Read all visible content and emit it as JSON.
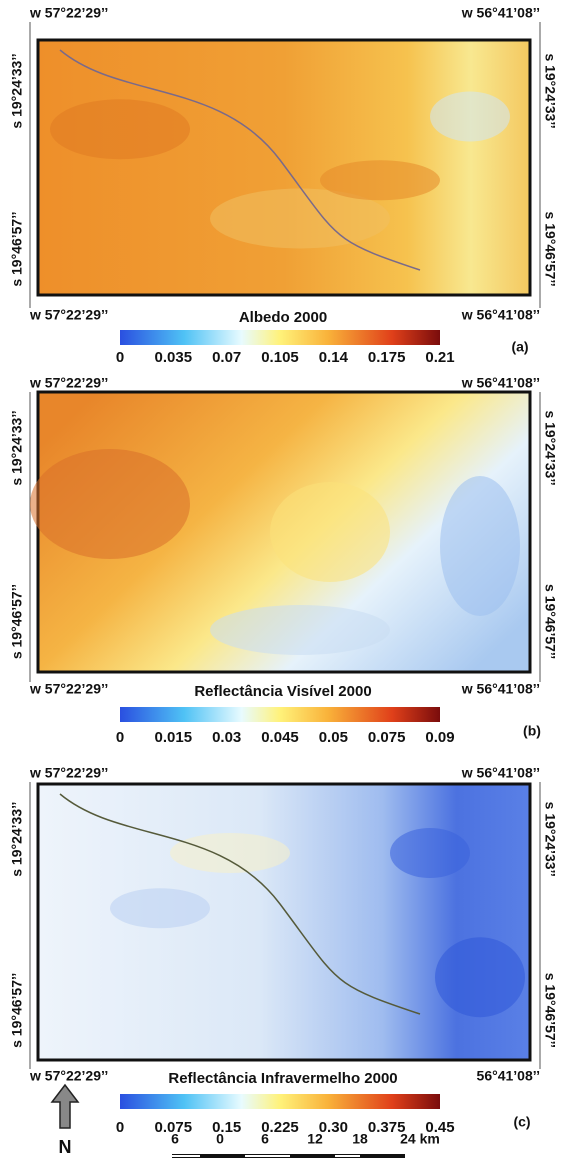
{
  "panels": [
    {
      "corners": {
        "top_left": "w 57°22’29’’",
        "top_right": "w 56°41’08’’",
        "left_top": "s 19°24’33’’",
        "left_bottom": "s 19°46’57’’",
        "right_top": "s 19°24’33’’",
        "right_bottom": "s 19°46’57’’",
        "bottom_left": "w 57°22’29’’",
        "bottom_right": "w 56°41’08’’"
      },
      "title": "Albedo 2000",
      "colorbar_ticks": [
        "0",
        "0.035",
        "0.07",
        "0.105",
        "0.14",
        "0.175",
        "0.21"
      ],
      "label": "(a)"
    },
    {
      "corners": {
        "top_left": "w 57°22’29’’",
        "top_right": "w 56°41’08’’",
        "left_top": "s 19°24’33’’",
        "left_bottom": "s 19°46’57’’",
        "right_top": "s 19°24’33’’",
        "right_bottom": "s 19°46’57’’",
        "bottom_left": "w 57°22’29’’",
        "bottom_right": "w 56°41’08’’"
      },
      "title": "Reflectância Visível 2000",
      "colorbar_ticks": [
        "0",
        "0.015",
        "0.03",
        "0.045",
        "0.05",
        "0.075",
        "0.09"
      ],
      "label": "(b)"
    },
    {
      "corners": {
        "top_left": "w 57°22’29’’",
        "top_right": "w 56°41’08’’",
        "left_top": "s 19°24’33’’",
        "left_bottom": "s 19°46’57’’",
        "right_top": "s 19°24’33’’",
        "right_bottom": "s 19°46’57’’",
        "bottom_left": "w 57°22’29’’",
        "bottom_right": "56°41’08’’"
      },
      "title": "Reflectância Infravermelho 2000",
      "colorbar_ticks": [
        "0",
        "0.075",
        "0.15",
        "0.225",
        "0.30",
        "0.375",
        "0.45"
      ],
      "label": "(c)"
    }
  ],
  "north": "N",
  "scale_bar": [
    "6",
    "0",
    "6",
    "12",
    "18",
    "24 km"
  ]
}
